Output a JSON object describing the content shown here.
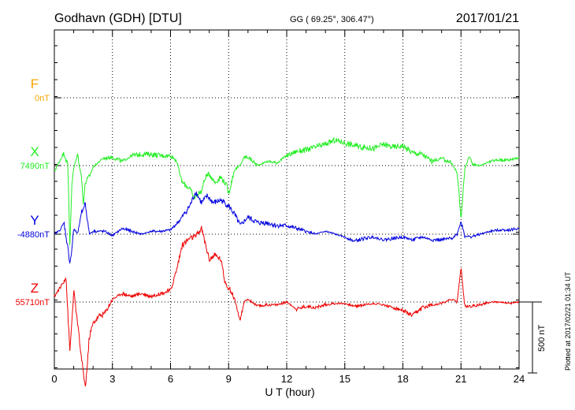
{
  "header": {
    "station": "Godhavn (GDH)  [DTU]",
    "coords": "GG ( 69.25°, 306.47°)",
    "date": "2017/01/21"
  },
  "footer": {
    "plotted": "Plotted at 2017/02/21 01:34 UT"
  },
  "chart_data": {
    "type": "line",
    "xlabel": "U T (hour)",
    "xlim": [
      0,
      24
    ],
    "xticks": [
      0,
      3,
      6,
      9,
      12,
      15,
      18,
      21,
      24
    ],
    "scale_bar": "500 nT",
    "scale_bar_nT": 500,
    "series": [
      {
        "name": "F",
        "baseline": "0nT",
        "color": "#f5a500",
        "values": []
      },
      {
        "name": "X",
        "baseline": "7490nT",
        "color": "#22ee22",
        "x": [
          0,
          0.3,
          0.5,
          0.7,
          0.8,
          0.9,
          1.0,
          1.2,
          1.4,
          1.5,
          1.6,
          1.8,
          2.0,
          2.5,
          3,
          3.5,
          4,
          4.5,
          5,
          5.5,
          6,
          6.3,
          6.6,
          7.0,
          7.2,
          7.4,
          7.6,
          7.8,
          8.0,
          8.3,
          8.6,
          8.9,
          9.0,
          9.3,
          9.6,
          9.8,
          10,
          10.5,
          11,
          11.5,
          12,
          12.5,
          13,
          13.5,
          14,
          14.5,
          15,
          15.5,
          16,
          16.5,
          17,
          17.5,
          18,
          18.5,
          19,
          19.5,
          20,
          20.5,
          20.8,
          20.9,
          21.0,
          21.1,
          21.2,
          21.4,
          21.6,
          22,
          22.5,
          23,
          23.5,
          24
        ],
        "values": [
          -40,
          40,
          90,
          0,
          -560,
          -150,
          -20,
          80,
          -80,
          -270,
          -120,
          -80,
          -10,
          50,
          60,
          30,
          70,
          80,
          80,
          70,
          70,
          40,
          -120,
          -160,
          -230,
          -200,
          -180,
          -80,
          -60,
          -120,
          -80,
          -140,
          -200,
          -30,
          0,
          60,
          60,
          0,
          30,
          20,
          70,
          100,
          110,
          130,
          150,
          180,
          160,
          140,
          130,
          120,
          150,
          130,
          140,
          90,
          80,
          30,
          50,
          20,
          -50,
          -200,
          -380,
          -200,
          -20,
          60,
          10,
          0,
          30,
          40,
          40,
          60
        ]
      },
      {
        "name": "Y",
        "baseline": "-4880nT",
        "color": "#0000e0",
        "x": [
          0,
          0.3,
          0.5,
          0.7,
          0.8,
          0.9,
          1.0,
          1.2,
          1.4,
          1.6,
          1.8,
          2.0,
          2.3,
          2.6,
          3,
          3.5,
          4,
          4.5,
          5,
          5.5,
          6,
          6.5,
          7,
          7.3,
          7.6,
          7.9,
          8.2,
          8.6,
          9.0,
          9.3,
          9.6,
          10,
          10.5,
          11,
          11.5,
          12,
          12.5,
          13,
          13.5,
          14,
          14.5,
          15,
          15.5,
          16,
          16.5,
          17,
          17.5,
          18,
          18.5,
          19,
          19.5,
          20,
          20.5,
          20.8,
          21.0,
          21.2,
          21.5,
          22,
          22.5,
          23,
          23.5,
          24
        ],
        "values": [
          0,
          30,
          80,
          -100,
          -200,
          -120,
          40,
          0,
          150,
          220,
          0,
          20,
          20,
          20,
          -10,
          40,
          20,
          0,
          20,
          20,
          30,
          100,
          200,
          300,
          220,
          270,
          220,
          240,
          200,
          140,
          60,
          120,
          80,
          80,
          60,
          60,
          40,
          20,
          0,
          20,
          0,
          -20,
          -50,
          -30,
          -20,
          -40,
          -30,
          -20,
          -40,
          -20,
          -40,
          -40,
          -30,
          0,
          90,
          -10,
          -20,
          0,
          20,
          30,
          30,
          40
        ]
      },
      {
        "name": "Z",
        "baseline": "55710nT",
        "color": "#ee0000",
        "x": [
          0,
          0.3,
          0.6,
          0.8,
          0.9,
          1.0,
          1.2,
          1.4,
          1.6,
          1.7,
          1.8,
          2.0,
          2.3,
          2.6,
          3,
          3.5,
          4,
          4.5,
          5,
          5.5,
          6,
          6.3,
          6.6,
          7.0,
          7.3,
          7.6,
          8.0,
          8.3,
          8.6,
          8.8,
          9.0,
          9.3,
          9.6,
          9.8,
          10,
          10.5,
          11,
          11.5,
          12,
          12.5,
          13,
          13.5,
          14,
          14.5,
          15,
          15.5,
          16,
          16.5,
          17,
          17.5,
          18,
          18.5,
          19,
          19.5,
          20,
          20.5,
          20.8,
          21.0,
          21.2,
          21.5,
          22,
          22.5,
          23,
          23.5,
          24
        ],
        "values": [
          40,
          100,
          180,
          -350,
          -150,
          80,
          -150,
          -400,
          -600,
          -450,
          -250,
          -150,
          -100,
          -80,
          20,
          60,
          40,
          60,
          40,
          60,
          80,
          220,
          400,
          450,
          460,
          520,
          300,
          330,
          300,
          150,
          100,
          30,
          -140,
          0,
          20,
          -30,
          -20,
          -20,
          0,
          -50,
          -30,
          -40,
          -20,
          -10,
          -10,
          -30,
          -20,
          -10,
          -20,
          -40,
          -60,
          -100,
          -40,
          -20,
          -10,
          20,
          0,
          240,
          -30,
          -30,
          -20,
          0,
          0,
          -10,
          0
        ]
      }
    ]
  }
}
